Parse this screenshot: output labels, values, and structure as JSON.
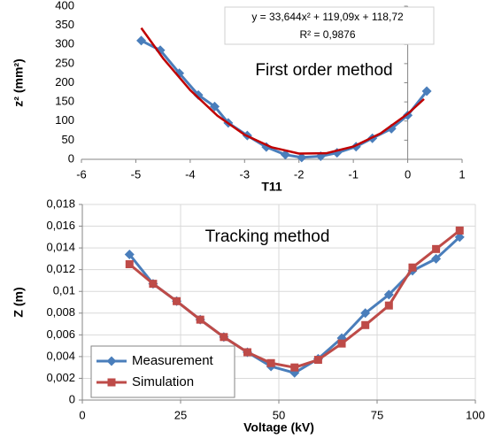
{
  "chart_data": [
    {
      "type": "scatter",
      "xlabel": "T11",
      "ylabel": "z² (mm²)",
      "annotations": [
        "y = 33,644x² + 119,09x + 118,72",
        "R² = 0,9876",
        "First order method"
      ],
      "xlim": [
        -6,
        1
      ],
      "xticks": [
        -6,
        -5,
        -4,
        -3,
        -2,
        -1,
        0,
        1
      ],
      "ylim": [
        0,
        400
      ],
      "yticks": [
        0,
        50,
        100,
        150,
        200,
        250,
        300,
        350,
        400
      ],
      "grid": false,
      "series": [
        {
          "color": "#4a7ebb",
          "marker": "diamond",
          "x": [
            -4.9,
            -4.55,
            -4.2,
            -3.85,
            -3.55,
            -3.3,
            -2.95,
            -2.6,
            -2.25,
            -1.95,
            -1.6,
            -1.3,
            -0.95,
            -0.65,
            -0.3,
            0,
            0.35
          ],
          "values": [
            310,
            285,
            225,
            168,
            138,
            95,
            62,
            32,
            12,
            5,
            8,
            17,
            33,
            55,
            80,
            115,
            178
          ]
        }
      ],
      "trendline": {
        "color": "#c00000",
        "x": [
          -4.9,
          -4.5,
          -4,
          -3.5,
          -3,
          -2.5,
          -2,
          -1.5,
          -1,
          -0.5,
          0,
          0.3
        ],
        "values": [
          343,
          264.1,
          180.7,
          114,
          64.2,
          31.3,
          15.1,
          15.8,
          33.3,
          67.6,
          118.7,
          157.5
        ]
      }
    },
    {
      "type": "line",
      "xlabel": "Voltage (kV)",
      "ylabel": "Z (m)",
      "annotations": [
        "Tracking method"
      ],
      "xlim": [
        0,
        100
      ],
      "xticks": [
        0,
        25,
        50,
        75,
        100
      ],
      "ylim": [
        0,
        0.018
      ],
      "yticks": [
        0,
        {
          "value": 0.002,
          "label": "0,002"
        },
        {
          "value": 0.004,
          "label": "0,004"
        },
        {
          "value": 0.006,
          "label": "0,006"
        },
        {
          "value": 0.008,
          "label": "0,008"
        },
        {
          "value": 0.01,
          "label": "0,01"
        },
        {
          "value": 0.012,
          "label": "0,012"
        },
        {
          "value": 0.014,
          "label": "0,014"
        },
        {
          "value": 0.016,
          "label": "0,016"
        },
        {
          "value": 0.018,
          "label": "0,018"
        }
      ],
      "grid": true,
      "legend": "bottom-left",
      "x": [
        12,
        18,
        24,
        30,
        36,
        42,
        48,
        54,
        60,
        66,
        72,
        78,
        84,
        90,
        96
      ],
      "series": [
        {
          "name": "Measurement",
          "color": "#4a7ebb",
          "marker": "diamond",
          "values": [
            0.0134,
            0.0107,
            0.0091,
            0.0074,
            0.0058,
            0.0044,
            0.0031,
            0.0025,
            0.0038,
            0.0057,
            0.008,
            0.0097,
            0.0119,
            0.013,
            0.015
          ]
        },
        {
          "name": "Simulation",
          "color": "#be4b48",
          "marker": "square",
          "values": [
            0.0125,
            0.0107,
            0.0091,
            0.0074,
            0.0058,
            0.0044,
            0.0034,
            0.003,
            0.0037,
            0.0052,
            0.0069,
            0.0087,
            0.0122,
            0.0139,
            0.0156
          ]
        }
      ]
    }
  ]
}
